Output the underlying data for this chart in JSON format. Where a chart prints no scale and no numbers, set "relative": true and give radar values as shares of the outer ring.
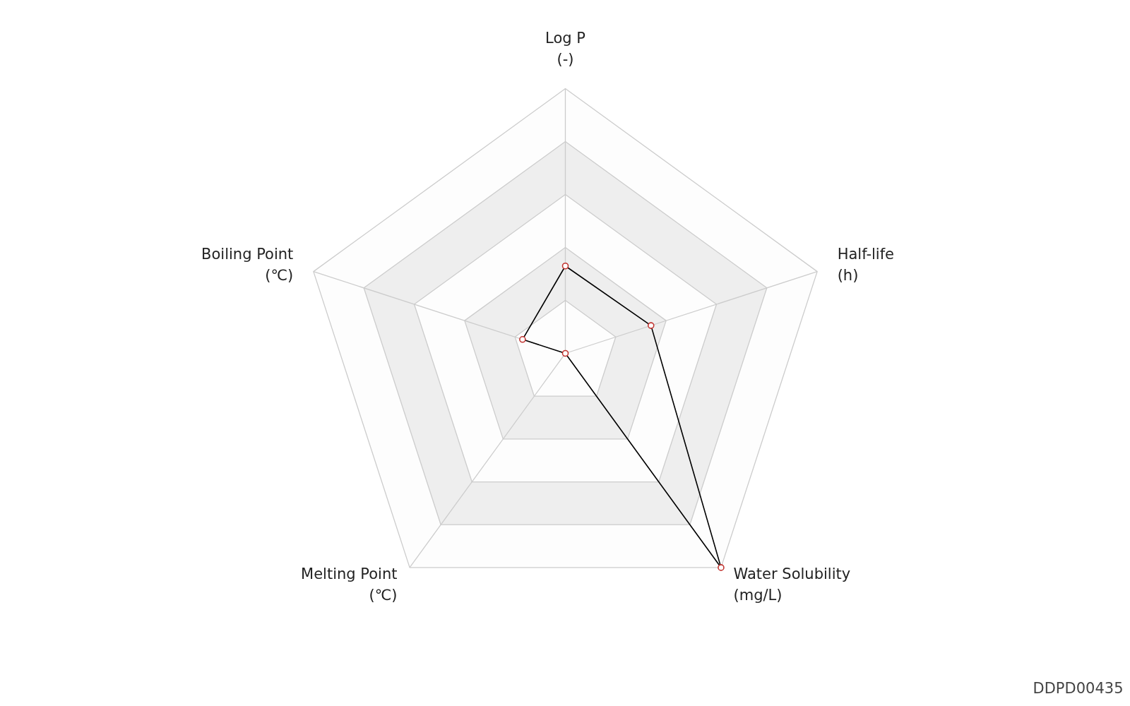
{
  "chart_data": {
    "type": "radar",
    "relative": true,
    "categories": [
      "Log P\n(-)",
      "Half-life\n(h)",
      "Water Solubility\n(mg/L)",
      "Melting Point\n(℃)",
      "Boiling Point\n(℃)"
    ],
    "series": [
      {
        "color": "#000000",
        "colors": [
          "#c23531",
          "#c23531",
          "#c23531",
          "#c23531",
          "#c23531"
        ],
        "values": [
          0.33,
          0.34,
          1,
          0,
          0.17
        ]
      }
    ],
    "grid": true,
    "marker": "circle",
    "annotations": [
      "DDPD00435"
    ]
  }
}
